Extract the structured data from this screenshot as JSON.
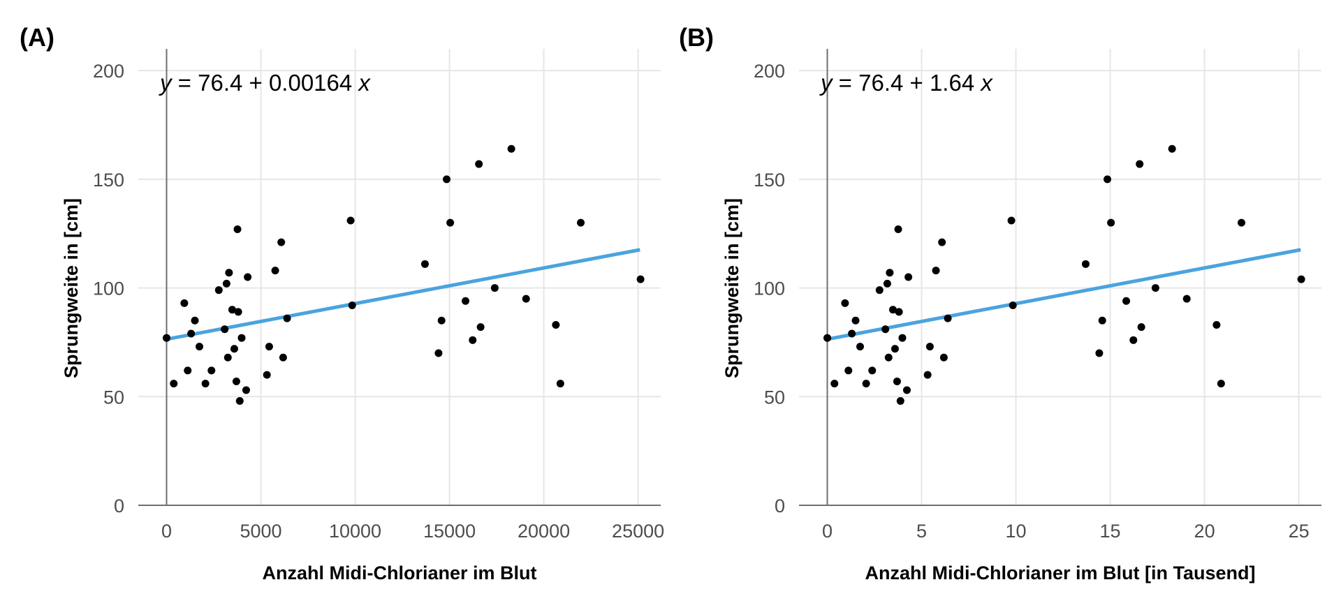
{
  "colors": {
    "regression_line": "#4aa3df",
    "points": "#000000",
    "grid": "#e6e6e6",
    "axis": "#6e6e6e"
  },
  "chart_data": [
    {
      "type": "scatter",
      "panel_label": "(A)",
      "equation": {
        "y_var": "y",
        "text": " = 76.4 + 0.00164 ",
        "x_var": "x"
      },
      "xlabel": "Anzahl Midi-Chlorianer im Blut",
      "ylabel": "Sprungweite in [cm]",
      "xlim": [
        -1500,
        26200
      ],
      "ylim": [
        0,
        210
      ],
      "x_ticks": [
        0,
        5000,
        10000,
        15000,
        20000,
        25000
      ],
      "x_tick_labels": [
        "0",
        "5000",
        "10000",
        "15000",
        "20000",
        "25000"
      ],
      "y_ticks": [
        0,
        50,
        100,
        150,
        200
      ],
      "y_tick_labels": [
        "0",
        "50",
        "100",
        "150",
        "200"
      ],
      "grid": true,
      "regression": {
        "intercept": 76.4,
        "slope": 0.00164,
        "x_range": [
          0,
          25100
        ]
      },
      "points": [
        {
          "x": 0,
          "y": 77
        },
        {
          "x": 380,
          "y": 56
        },
        {
          "x": 940,
          "y": 93
        },
        {
          "x": 1120,
          "y": 62
        },
        {
          "x": 1300,
          "y": 79
        },
        {
          "x": 1500,
          "y": 85
        },
        {
          "x": 1740,
          "y": 73
        },
        {
          "x": 2060,
          "y": 56
        },
        {
          "x": 2380,
          "y": 62
        },
        {
          "x": 2770,
          "y": 99
        },
        {
          "x": 3080,
          "y": 81
        },
        {
          "x": 3180,
          "y": 102
        },
        {
          "x": 3250,
          "y": 68
        },
        {
          "x": 3310,
          "y": 107
        },
        {
          "x": 3480,
          "y": 90
        },
        {
          "x": 3590,
          "y": 72
        },
        {
          "x": 3700,
          "y": 57
        },
        {
          "x": 3760,
          "y": 127
        },
        {
          "x": 3800,
          "y": 89
        },
        {
          "x": 3880,
          "y": 48
        },
        {
          "x": 3980,
          "y": 77
        },
        {
          "x": 4220,
          "y": 53
        },
        {
          "x": 4300,
          "y": 105
        },
        {
          "x": 5320,
          "y": 60
        },
        {
          "x": 5440,
          "y": 73
        },
        {
          "x": 5760,
          "y": 108
        },
        {
          "x": 6080,
          "y": 121
        },
        {
          "x": 6180,
          "y": 68
        },
        {
          "x": 6390,
          "y": 86
        },
        {
          "x": 9760,
          "y": 131
        },
        {
          "x": 9840,
          "y": 92
        },
        {
          "x": 13700,
          "y": 111
        },
        {
          "x": 14420,
          "y": 70
        },
        {
          "x": 14580,
          "y": 85
        },
        {
          "x": 14850,
          "y": 150
        },
        {
          "x": 15040,
          "y": 130
        },
        {
          "x": 15850,
          "y": 94
        },
        {
          "x": 16230,
          "y": 76
        },
        {
          "x": 16560,
          "y": 157
        },
        {
          "x": 16650,
          "y": 82
        },
        {
          "x": 17400,
          "y": 100
        },
        {
          "x": 18280,
          "y": 164
        },
        {
          "x": 19060,
          "y": 95
        },
        {
          "x": 20640,
          "y": 83
        },
        {
          "x": 20880,
          "y": 56
        },
        {
          "x": 21960,
          "y": 130
        },
        {
          "x": 25130,
          "y": 104
        }
      ]
    },
    {
      "type": "scatter",
      "panel_label": "(B)",
      "equation": {
        "y_var": "y",
        "text": " = 76.4 + 1.64 ",
        "x_var": "x"
      },
      "xlabel": "Anzahl Midi-Chlorianer im Blut [in Tausend]",
      "ylabel": "Sprungweite in [cm]",
      "xlim": [
        -1.5,
        26.2
      ],
      "ylim": [
        0,
        210
      ],
      "x_ticks": [
        0,
        5,
        10,
        15,
        20,
        25
      ],
      "x_tick_labels": [
        "0",
        "5",
        "10",
        "15",
        "20",
        "25"
      ],
      "y_ticks": [
        0,
        50,
        100,
        150,
        200
      ],
      "y_tick_labels": [
        "0",
        "50",
        "100",
        "150",
        "200"
      ],
      "grid": true,
      "regression": {
        "intercept": 76.4,
        "slope": 1.64,
        "x_range": [
          0,
          25.1
        ]
      },
      "points": [
        {
          "x": 0,
          "y": 77
        },
        {
          "x": 0.38,
          "y": 56
        },
        {
          "x": 0.94,
          "y": 93
        },
        {
          "x": 1.12,
          "y": 62
        },
        {
          "x": 1.3,
          "y": 79
        },
        {
          "x": 1.5,
          "y": 85
        },
        {
          "x": 1.74,
          "y": 73
        },
        {
          "x": 2.06,
          "y": 56
        },
        {
          "x": 2.38,
          "y": 62
        },
        {
          "x": 2.77,
          "y": 99
        },
        {
          "x": 3.08,
          "y": 81
        },
        {
          "x": 3.18,
          "y": 102
        },
        {
          "x": 3.25,
          "y": 68
        },
        {
          "x": 3.31,
          "y": 107
        },
        {
          "x": 3.48,
          "y": 90
        },
        {
          "x": 3.59,
          "y": 72
        },
        {
          "x": 3.7,
          "y": 57
        },
        {
          "x": 3.76,
          "y": 127
        },
        {
          "x": 3.8,
          "y": 89
        },
        {
          "x": 3.88,
          "y": 48
        },
        {
          "x": 3.98,
          "y": 77
        },
        {
          "x": 4.22,
          "y": 53
        },
        {
          "x": 4.3,
          "y": 105
        },
        {
          "x": 5.32,
          "y": 60
        },
        {
          "x": 5.44,
          "y": 73
        },
        {
          "x": 5.76,
          "y": 108
        },
        {
          "x": 6.08,
          "y": 121
        },
        {
          "x": 6.18,
          "y": 68
        },
        {
          "x": 6.39,
          "y": 86
        },
        {
          "x": 9.76,
          "y": 131
        },
        {
          "x": 9.84,
          "y": 92
        },
        {
          "x": 13.7,
          "y": 111
        },
        {
          "x": 14.42,
          "y": 70
        },
        {
          "x": 14.58,
          "y": 85
        },
        {
          "x": 14.85,
          "y": 150
        },
        {
          "x": 15.04,
          "y": 130
        },
        {
          "x": 15.85,
          "y": 94
        },
        {
          "x": 16.23,
          "y": 76
        },
        {
          "x": 16.56,
          "y": 157
        },
        {
          "x": 16.65,
          "y": 82
        },
        {
          "x": 17.4,
          "y": 100
        },
        {
          "x": 18.28,
          "y": 164
        },
        {
          "x": 19.06,
          "y": 95
        },
        {
          "x": 20.64,
          "y": 83
        },
        {
          "x": 20.88,
          "y": 56
        },
        {
          "x": 21.96,
          "y": 130
        },
        {
          "x": 25.13,
          "y": 104
        }
      ]
    }
  ]
}
